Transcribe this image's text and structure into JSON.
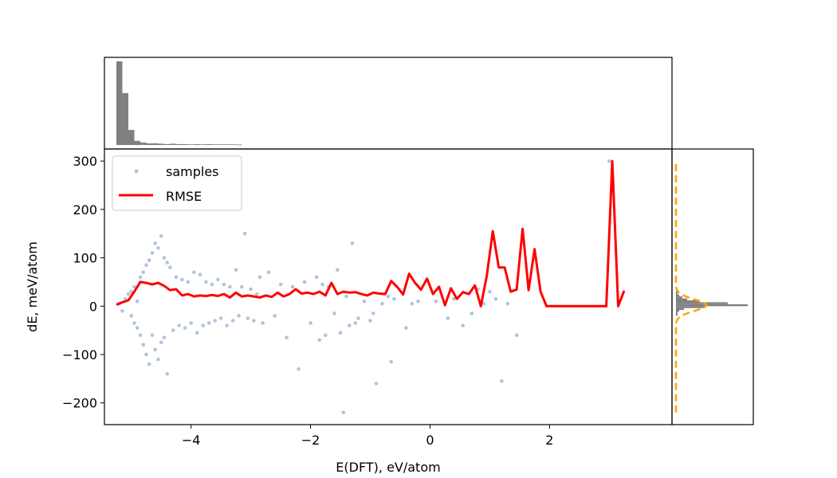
{
  "chart_data": {
    "type": "scatter",
    "xlabel": "E(DFT), eV/atom",
    "ylabel": "dE, meV/atom",
    "xlim": [
      -5.45,
      4.05
    ],
    "ylim": [
      -245,
      325
    ],
    "x_ticks": [
      -4,
      -2,
      0,
      2
    ],
    "y_ticks": [
      -200,
      -100,
      0,
      100,
      200,
      300
    ],
    "x_tick_labels": [
      "−4",
      "−2",
      "0",
      "2"
    ],
    "y_tick_labels": [
      "−200",
      "−100",
      "0",
      "100",
      "200",
      "300"
    ],
    "legend": {
      "placement": "upper-left",
      "entries": [
        {
          "label": "samples",
          "color": "#b0c4de",
          "marker": "dot"
        },
        {
          "label": "RMSE",
          "color": "#ff0000",
          "marker": "line"
        }
      ]
    },
    "series": [
      {
        "name": "samples",
        "kind": "scatter",
        "color": "#b0c4de",
        "points": [
          [
            -5.2,
            5
          ],
          [
            -5.15,
            -10
          ],
          [
            -5.1,
            15
          ],
          [
            -5.05,
            25
          ],
          [
            -5.0,
            -20
          ],
          [
            -5.0,
            30
          ],
          [
            -4.95,
            -35
          ],
          [
            -4.95,
            40
          ],
          [
            -4.9,
            10
          ],
          [
            -4.9,
            -45
          ],
          [
            -4.85,
            60
          ],
          [
            -4.85,
            -60
          ],
          [
            -4.8,
            70
          ],
          [
            -4.8,
            -80
          ],
          [
            -4.75,
            85
          ],
          [
            -4.75,
            -100
          ],
          [
            -4.7,
            95
          ],
          [
            -4.7,
            -120
          ],
          [
            -4.65,
            110
          ],
          [
            -4.65,
            -60
          ],
          [
            -4.6,
            130
          ],
          [
            -4.6,
            -90
          ],
          [
            -4.55,
            120
          ],
          [
            -4.55,
            -110
          ],
          [
            -4.5,
            145
          ],
          [
            -4.5,
            -75
          ],
          [
            -4.45,
            100
          ],
          [
            -4.45,
            -65
          ],
          [
            -4.4,
            90
          ],
          [
            -4.4,
            -140
          ],
          [
            -4.35,
            80
          ],
          [
            -4.3,
            -50
          ],
          [
            -4.25,
            60
          ],
          [
            -4.2,
            -40
          ],
          [
            -4.15,
            55
          ],
          [
            -4.1,
            -45
          ],
          [
            -4.05,
            50
          ],
          [
            -4.0,
            -35
          ],
          [
            -3.95,
            70
          ],
          [
            -3.9,
            -55
          ],
          [
            -3.85,
            65
          ],
          [
            -3.8,
            -40
          ],
          [
            -3.75,
            50
          ],
          [
            -3.7,
            -35
          ],
          [
            -3.65,
            45
          ],
          [
            -3.6,
            -30
          ],
          [
            -3.55,
            55
          ],
          [
            -3.5,
            -25
          ],
          [
            -3.45,
            45
          ],
          [
            -3.4,
            -40
          ],
          [
            -3.35,
            40
          ],
          [
            -3.3,
            -30
          ],
          [
            -3.25,
            75
          ],
          [
            -3.2,
            -20
          ],
          [
            -3.15,
            40
          ],
          [
            -3.1,
            150
          ],
          [
            -3.05,
            -25
          ],
          [
            -3.0,
            35
          ],
          [
            -2.95,
            -30
          ],
          [
            -2.9,
            25
          ],
          [
            -2.85,
            60
          ],
          [
            -2.8,
            -35
          ],
          [
            -2.7,
            70
          ],
          [
            -2.6,
            -20
          ],
          [
            -2.5,
            45
          ],
          [
            -2.4,
            -65
          ],
          [
            -2.3,
            40
          ],
          [
            -2.2,
            -130
          ],
          [
            -2.1,
            50
          ],
          [
            -2.0,
            -35
          ],
          [
            -1.9,
            60
          ],
          [
            -1.85,
            -70
          ],
          [
            -1.8,
            45
          ],
          [
            -1.75,
            -60
          ],
          [
            -1.7,
            40
          ],
          [
            -1.6,
            -15
          ],
          [
            -1.55,
            75
          ],
          [
            -1.5,
            -55
          ],
          [
            -1.45,
            -220
          ],
          [
            -1.4,
            20
          ],
          [
            -1.35,
            -40
          ],
          [
            -1.3,
            130
          ],
          [
            -1.25,
            -35
          ],
          [
            -1.2,
            -25
          ],
          [
            -1.1,
            10
          ],
          [
            -1.0,
            -30
          ],
          [
            -0.95,
            -15
          ],
          [
            -0.9,
            -160
          ],
          [
            -0.8,
            5
          ],
          [
            -0.7,
            20
          ],
          [
            -0.65,
            -115
          ],
          [
            -0.6,
            15
          ],
          [
            -0.4,
            -45
          ],
          [
            -0.3,
            5
          ],
          [
            -0.2,
            10
          ],
          [
            0.1,
            10
          ],
          [
            0.3,
            -25
          ],
          [
            0.4,
            15
          ],
          [
            0.55,
            -40
          ],
          [
            0.7,
            -15
          ],
          [
            0.8,
            35
          ],
          [
            0.9,
            5
          ],
          [
            1.0,
            30
          ],
          [
            1.1,
            15
          ],
          [
            1.2,
            -155
          ],
          [
            1.3,
            5
          ],
          [
            1.45,
            -60
          ],
          [
            3.0,
            300
          ]
        ]
      },
      {
        "name": "RMSE",
        "kind": "line",
        "color": "#ff0000",
        "x": [
          -5.25,
          -5.15,
          -5.05,
          -4.95,
          -4.85,
          -4.75,
          -4.65,
          -4.55,
          -4.45,
          -4.35,
          -4.25,
          -4.15,
          -4.05,
          -3.95,
          -3.85,
          -3.75,
          -3.65,
          -3.55,
          -3.45,
          -3.35,
          -3.25,
          -3.15,
          -3.05,
          -2.95,
          -2.85,
          -2.75,
          -2.65,
          -2.55,
          -2.45,
          -2.35,
          -2.25,
          -2.15,
          -2.05,
          -1.95,
          -1.85,
          -1.75,
          -1.65,
          -1.55,
          -1.45,
          -1.35,
          -1.25,
          -1.15,
          -1.05,
          -0.95,
          -0.85,
          -0.75,
          -0.65,
          -0.55,
          -0.45,
          -0.35,
          -0.25,
          -0.15,
          -0.05,
          0.05,
          0.15,
          0.25,
          0.35,
          0.45,
          0.55,
          0.65,
          0.75,
          0.85,
          0.95,
          1.05,
          1.15,
          1.25,
          1.35,
          1.45,
          1.55,
          1.65,
          1.75,
          1.85,
          1.95,
          2.05,
          2.15,
          2.25,
          2.35,
          2.45,
          2.55,
          2.65,
          2.75,
          2.85,
          2.95,
          3.05,
          3.15,
          3.25
        ],
        "y": [
          3,
          8,
          12,
          30,
          50,
          48,
          45,
          48,
          42,
          33,
          35,
          22,
          25,
          20,
          22,
          21,
          23,
          21,
          25,
          18,
          28,
          20,
          22,
          20,
          18,
          22,
          19,
          28,
          20,
          25,
          35,
          26,
          28,
          25,
          30,
          22,
          48,
          25,
          30,
          28,
          29,
          25,
          22,
          28,
          26,
          25,
          52,
          40,
          24,
          67,
          48,
          34,
          57,
          25,
          40,
          2,
          37,
          15,
          29,
          25,
          43,
          0,
          63,
          155,
          80,
          80,
          30,
          34,
          160,
          33,
          118,
          30,
          0,
          0,
          0,
          0,
          0,
          0,
          0,
          0,
          0,
          0,
          0,
          300,
          0,
          32
        ]
      }
    ],
    "marginal_top": {
      "kind": "histogram",
      "color": "#808080",
      "bin_x": [
        -5.25,
        -5.15,
        -5.05,
        -4.95,
        -4.85,
        -4.75,
        -4.65,
        -4.55,
        -4.45,
        -4.35,
        -4.25,
        -4.15,
        -4.05,
        -3.95,
        -3.85,
        -3.75,
        -3.65,
        -3.55,
        -3.45,
        -3.35,
        -3.25
      ],
      "counts": [
        1.0,
        0.62,
        0.18,
        0.05,
        0.03,
        0.02,
        0.02,
        0.015,
        0.01,
        0.015,
        0.01,
        0.01,
        0.008,
        0.01,
        0.008,
        0.01,
        0.008,
        0.008,
        0.008,
        0.008,
        0.006
      ]
    },
    "marginal_right": {
      "kind": "histogram",
      "color": "#808080",
      "fit_color": "#ffa500",
      "fit_style": "dashed"
    }
  }
}
